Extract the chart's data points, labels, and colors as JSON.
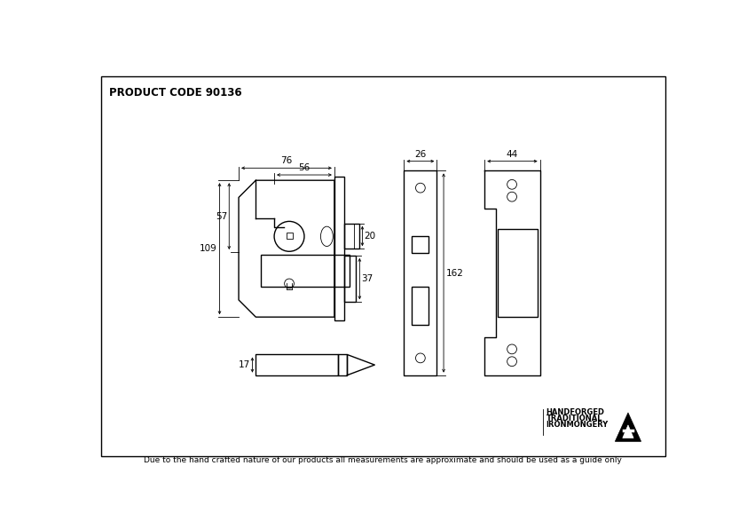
{
  "title": "PRODUCT CODE 90136",
  "footer": "Due to the hand crafted nature of our products all measurements are approximate and should be used as a guide only",
  "brand_line1": "HANDFORGED",
  "brand_line2": "TRADITIONAL",
  "brand_line3": "IRONMONGERY",
  "bg_color": "#ffffff",
  "line_color": "#000000",
  "lw": 1.0,
  "thin_lw": 0.6,
  "dim_lw": 0.6,
  "fs": 7.5,
  "fs_title": 8.5
}
